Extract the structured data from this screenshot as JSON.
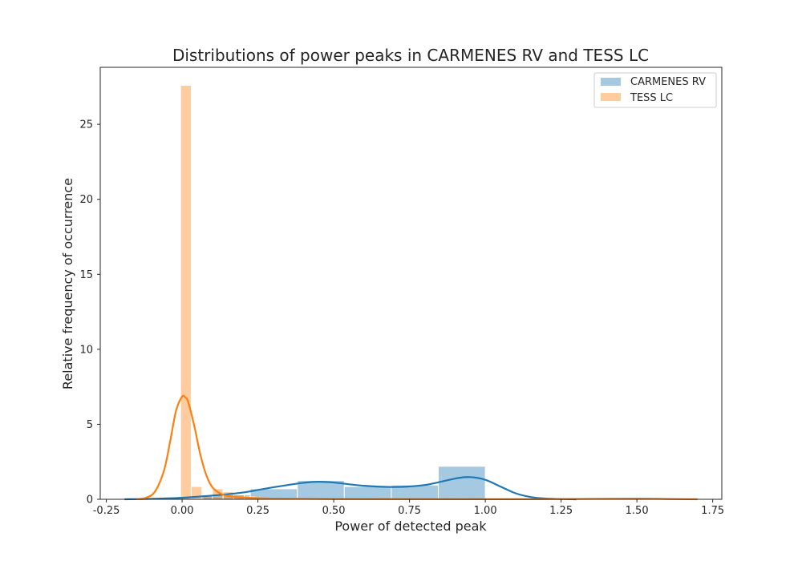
{
  "chart_data": {
    "type": "bar",
    "title": "Distributions of power peaks in CARMENES RV and TESS LC",
    "xlabel": "Power of detected peak",
    "ylabel": "Relative frequency of occurrence",
    "xlim": [
      -0.27,
      1.78
    ],
    "ylim": [
      0,
      28.8
    ],
    "xticks": [
      "-0.25",
      "0.00",
      "0.25",
      "0.50",
      "0.75",
      "1.00",
      "1.25",
      "1.50",
      "1.75"
    ],
    "yticks": [
      "0",
      "5",
      "10",
      "15",
      "20",
      "25"
    ],
    "grid": false,
    "legend_position": "top-right",
    "series": [
      {
        "name": "CARMENES RV",
        "color": "#1f77b4",
        "histogram": [
          {
            "x0": 0.07,
            "x1": 0.225,
            "y": 0.3
          },
          {
            "x0": 0.225,
            "x1": 0.38,
            "y": 0.7
          },
          {
            "x0": 0.38,
            "x1": 0.535,
            "y": 1.25
          },
          {
            "x0": 0.535,
            "x1": 0.69,
            "y": 0.85
          },
          {
            "x0": 0.69,
            "x1": 0.845,
            "y": 0.95
          },
          {
            "x0": 0.845,
            "x1": 1.0,
            "y": 2.2
          }
        ],
        "kde": {
          "x": [
            -0.19,
            -0.1,
            0.0,
            0.1,
            0.2,
            0.3,
            0.4,
            0.45,
            0.5,
            0.6,
            0.7,
            0.8,
            0.9,
            0.95,
            1.0,
            1.05,
            1.1,
            1.15,
            1.2,
            1.3
          ],
          "y": [
            0.0,
            0.03,
            0.1,
            0.25,
            0.45,
            0.8,
            1.1,
            1.17,
            1.12,
            0.9,
            0.82,
            0.95,
            1.38,
            1.48,
            1.3,
            0.85,
            0.4,
            0.15,
            0.05,
            0.0
          ]
        }
      },
      {
        "name": "TESS LC",
        "color": "#ff7f0e",
        "histogram": [
          {
            "x0": -0.005,
            "x1": 0.03,
            "y": 27.6
          },
          {
            "x0": 0.03,
            "x1": 0.065,
            "y": 0.85
          },
          {
            "x0": 0.065,
            "x1": 0.1,
            "y": 0.3
          },
          {
            "x0": 0.1,
            "x1": 0.135,
            "y": 0.7
          },
          {
            "x0": 0.135,
            "x1": 0.17,
            "y": 0.5
          },
          {
            "x0": 0.17,
            "x1": 0.205,
            "y": 0.3
          },
          {
            "x0": 0.205,
            "x1": 0.24,
            "y": 0.15
          }
        ],
        "kde": {
          "x": [
            -0.15,
            -0.12,
            -0.09,
            -0.06,
            -0.04,
            -0.02,
            0.0,
            0.01,
            0.02,
            0.04,
            0.06,
            0.08,
            0.1,
            0.13,
            0.16,
            0.2,
            0.3,
            0.5,
            0.8,
            1.2,
            1.5,
            1.6,
            1.7
          ],
          "y": [
            0.0,
            0.1,
            0.5,
            1.9,
            3.8,
            5.9,
            6.85,
            6.8,
            6.5,
            4.9,
            3.0,
            1.6,
            0.8,
            0.35,
            0.2,
            0.12,
            0.05,
            0.02,
            0.01,
            0.01,
            0.05,
            0.02,
            0.0
          ]
        }
      }
    ]
  }
}
